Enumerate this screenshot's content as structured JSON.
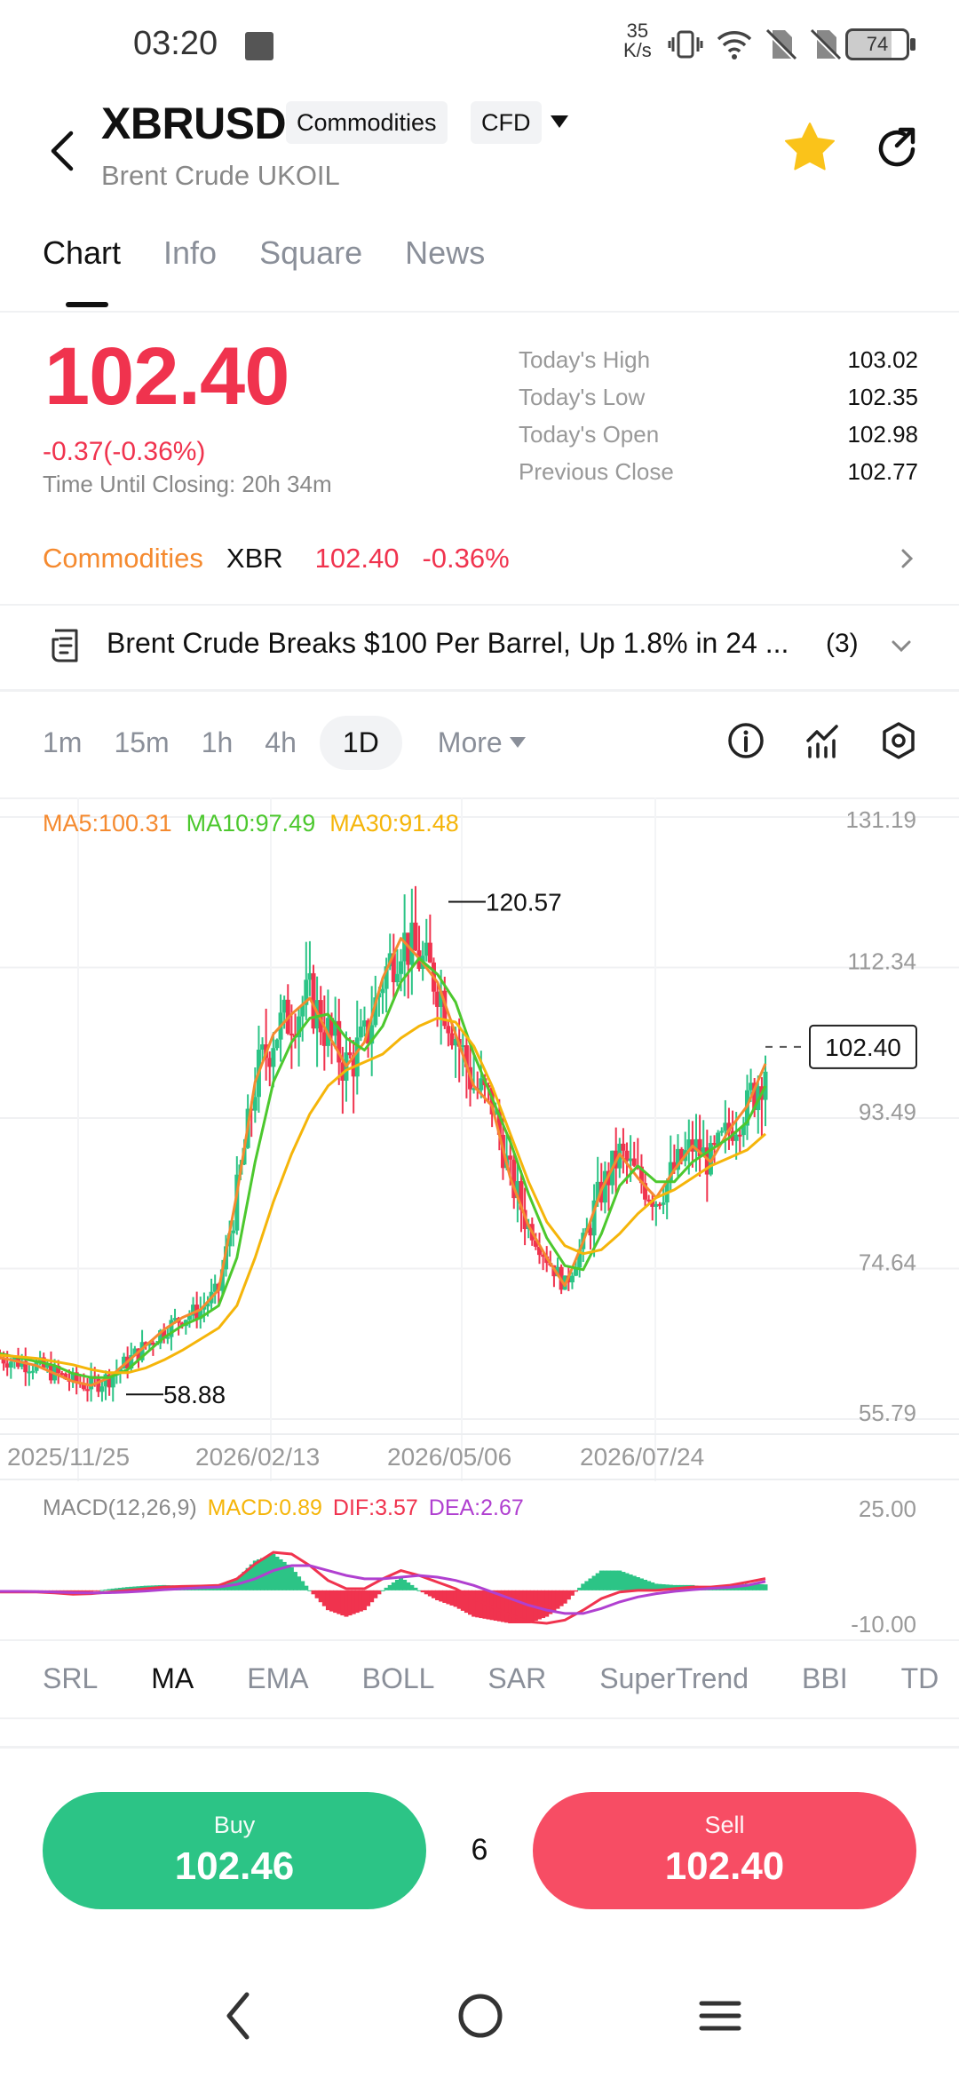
{
  "status_bar": {
    "time": "03:20",
    "net_speed_value": "35",
    "net_speed_unit": "K/s",
    "battery": "74"
  },
  "header": {
    "symbol": "XBRUSD",
    "tags": [
      "Commodities",
      "CFD"
    ],
    "subtitle": "Brent Crude UKOIL"
  },
  "tabs": [
    "Chart",
    "Info",
    "Square",
    "News"
  ],
  "price": {
    "last": "102.40",
    "change": "-0.37(-0.36%)",
    "closing": "Time Until Closing:  20h 34m",
    "stats": [
      {
        "label": "Today's High",
        "value": "103.02"
      },
      {
        "label": "Today's Low",
        "value": "102.35"
      },
      {
        "label": "Today's Open",
        "value": "102.98"
      },
      {
        "label": "Previous Close",
        "value": "102.77"
      }
    ]
  },
  "commodity_bar": {
    "category": "Commodities",
    "code": "XBR",
    "price": "102.40",
    "change": "-0.36%"
  },
  "news": {
    "headline": "Brent Crude Breaks $100 Per Barrel, Up 1.8% in 24 ...",
    "count": "(3)"
  },
  "intervals": [
    "1m",
    "15m",
    "1h",
    "4h",
    "1D"
  ],
  "more_label": "More",
  "ma_legend": {
    "ma5": "MA5:100.31",
    "ma10": "MA10:97.49",
    "ma30": "MA30:91.48"
  },
  "macd_legend": {
    "name": "MACD(12,26,9)",
    "macd": "MACD:0.89",
    "dif": "DIF:3.57",
    "dea": "DEA:2.67"
  },
  "colors": {
    "up": "#2cc486",
    "down": "#f0334e",
    "ma5": "#f58a2f",
    "ma10": "#4cc82e",
    "ma30": "#f5b50a",
    "dea": "#b040d0"
  },
  "chart_data": {
    "type": "line",
    "subtype": "candlestick",
    "y_ticks": [
      "131.19",
      "112.34",
      "93.49",
      "74.64",
      "55.79"
    ],
    "ylim": [
      55.79,
      131.19
    ],
    "x_ticks": [
      "2025/11/25",
      "2026/02/13",
      "2026/05/06",
      "2026/07/24"
    ],
    "annotations": {
      "high": "120.57",
      "low": "58.88",
      "last": "102.40"
    },
    "series": [
      {
        "name": "MA5",
        "values": [
          63.5,
          63.0,
          62.5,
          61.5,
          60.5,
          60.0,
          61.0,
          63.0,
          65.0,
          67.0,
          68.5,
          69.5,
          72.0,
          84.0,
          98.0,
          104.0,
          106.5,
          108.5,
          104.0,
          100.0,
          103.0,
          111.0,
          116.0,
          113.5,
          110.5,
          104.0,
          97.5,
          95.0,
          86.0,
          80.0,
          76.0,
          72.5,
          78.0,
          84.5,
          89.0,
          86.0,
          83.5,
          87.0,
          90.0,
          88.0,
          92.0,
          95.0,
          100.3
        ]
      },
      {
        "name": "MA10",
        "values": [
          64.0,
          63.5,
          63.0,
          62.5,
          61.5,
          61.0,
          61.0,
          62.0,
          64.0,
          66.0,
          67.5,
          68.5,
          70.0,
          76.0,
          88.0,
          98.0,
          103.0,
          106.0,
          106.5,
          103.5,
          102.0,
          105.0,
          110.5,
          113.5,
          111.5,
          108.0,
          101.5,
          96.0,
          90.5,
          84.0,
          78.5,
          75.0,
          74.5,
          79.0,
          85.0,
          87.5,
          85.5,
          85.5,
          88.0,
          89.5,
          91.0,
          93.0,
          97.5
        ]
      },
      {
        "name": "MA30",
        "values": [
          63.8,
          63.6,
          63.4,
          63.0,
          62.6,
          62.0,
          61.6,
          61.6,
          62.2,
          63.2,
          64.4,
          65.8,
          67.2,
          70.0,
          76.0,
          83.0,
          89.0,
          94.0,
          97.5,
          99.5,
          100.5,
          101.5,
          103.5,
          105.0,
          106.0,
          105.5,
          102.5,
          97.5,
          91.5,
          85.5,
          80.5,
          77.5,
          76.5,
          77.0,
          79.0,
          81.5,
          83.5,
          84.5,
          86.0,
          87.5,
          88.5,
          89.5,
          91.5
        ]
      }
    ],
    "macd": {
      "ylim": [
        -10,
        25
      ],
      "y_ticks": [
        "25.00",
        "-10.00"
      ],
      "dif": [
        -0.5,
        -0.5,
        -0.5,
        -0.8,
        -1.2,
        -1.0,
        -0.5,
        0.0,
        0.5,
        1.0,
        1.2,
        1.3,
        1.5,
        3.5,
        8.0,
        11.5,
        11.0,
        7.5,
        3.0,
        0.5,
        0.5,
        3.5,
        6.0,
        4.5,
        2.5,
        0.5,
        -2.5,
        -5.0,
        -7.5,
        -9.5,
        -10.0,
        -9.0,
        -6.0,
        -2.5,
        -0.5,
        0.0,
        0.0,
        0.5,
        1.0,
        1.0,
        1.5,
        2.5,
        3.57
      ],
      "dea": [
        -0.3,
        -0.3,
        -0.4,
        -0.5,
        -0.7,
        -0.8,
        -0.7,
        -0.5,
        -0.2,
        0.2,
        0.5,
        0.8,
        1.0,
        1.8,
        3.5,
        6.0,
        7.5,
        7.5,
        6.0,
        4.5,
        3.5,
        3.5,
        4.0,
        4.5,
        4.0,
        3.0,
        1.5,
        -0.5,
        -2.5,
        -4.5,
        -6.0,
        -7.0,
        -7.0,
        -5.5,
        -3.5,
        -2.0,
        -1.0,
        -0.3,
        0.2,
        0.6,
        0.9,
        1.5,
        2.67
      ]
    }
  },
  "indicators": [
    "SRL",
    "MA",
    "EMA",
    "BOLL",
    "SAR",
    "SuperTrend",
    "BBI",
    "TD"
  ],
  "trade": {
    "buy_label": "Buy",
    "buy_price": "102.46",
    "sell_label": "Sell",
    "sell_price": "102.40",
    "spread": "6"
  }
}
